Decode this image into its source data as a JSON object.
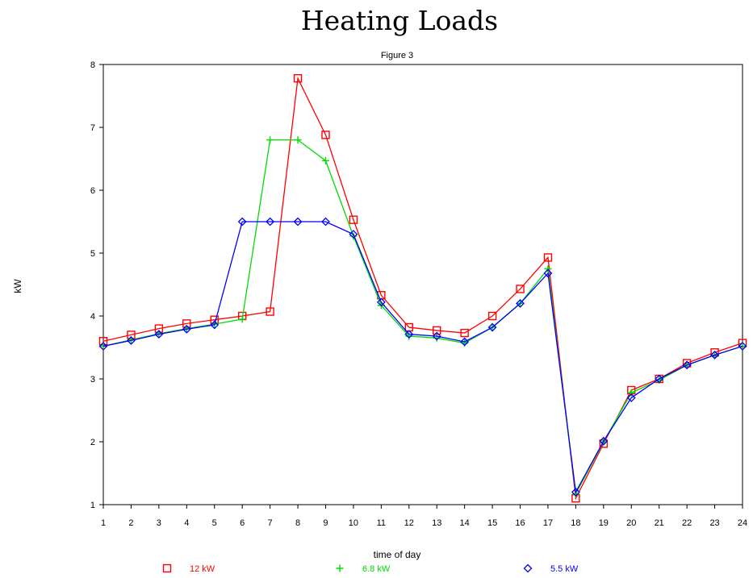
{
  "chart_data": {
    "type": "line",
    "title": "Heating Loads",
    "subtitle": "Figure 3",
    "xlabel": "time of day",
    "ylabel": "kW",
    "x": [
      1,
      2,
      3,
      4,
      5,
      6,
      7,
      8,
      9,
      10,
      11,
      12,
      13,
      14,
      15,
      16,
      17,
      18,
      19,
      20,
      21,
      22,
      23,
      24
    ],
    "xlim": [
      1,
      24
    ],
    "ylim": [
      1,
      8
    ],
    "yticks": [
      1,
      2,
      3,
      4,
      5,
      6,
      7,
      8
    ],
    "grid": false,
    "legend_position": "bottom",
    "series": [
      {
        "name": "12 kW",
        "color": "#ff0000",
        "marker": "square",
        "values": [
          3.6,
          3.7,
          3.8,
          3.88,
          3.94,
          4.0,
          4.07,
          7.78,
          6.88,
          5.53,
          4.33,
          3.82,
          3.77,
          3.73,
          4.0,
          4.43,
          4.93,
          1.1,
          1.97,
          2.82,
          3.0,
          3.25,
          3.42,
          3.57
        ]
      },
      {
        "name": "6.8 kW",
        "color": "#00dd00",
        "marker": "plus",
        "values": [
          3.52,
          3.62,
          3.72,
          3.8,
          3.87,
          3.95,
          6.8,
          6.8,
          6.47,
          5.27,
          4.17,
          3.68,
          3.65,
          3.57,
          3.82,
          4.2,
          4.75,
          1.17,
          2.0,
          2.78,
          2.98,
          3.22,
          3.38,
          3.52
        ]
      },
      {
        "name": "5.5 kW",
        "color": "#0000ff",
        "marker": "diamond",
        "values": [
          3.52,
          3.61,
          3.71,
          3.79,
          3.86,
          5.5,
          5.5,
          5.5,
          5.5,
          5.3,
          4.22,
          3.71,
          3.68,
          3.59,
          3.82,
          4.2,
          4.68,
          1.2,
          2.01,
          2.7,
          3.0,
          3.22,
          3.38,
          3.52
        ]
      }
    ]
  }
}
